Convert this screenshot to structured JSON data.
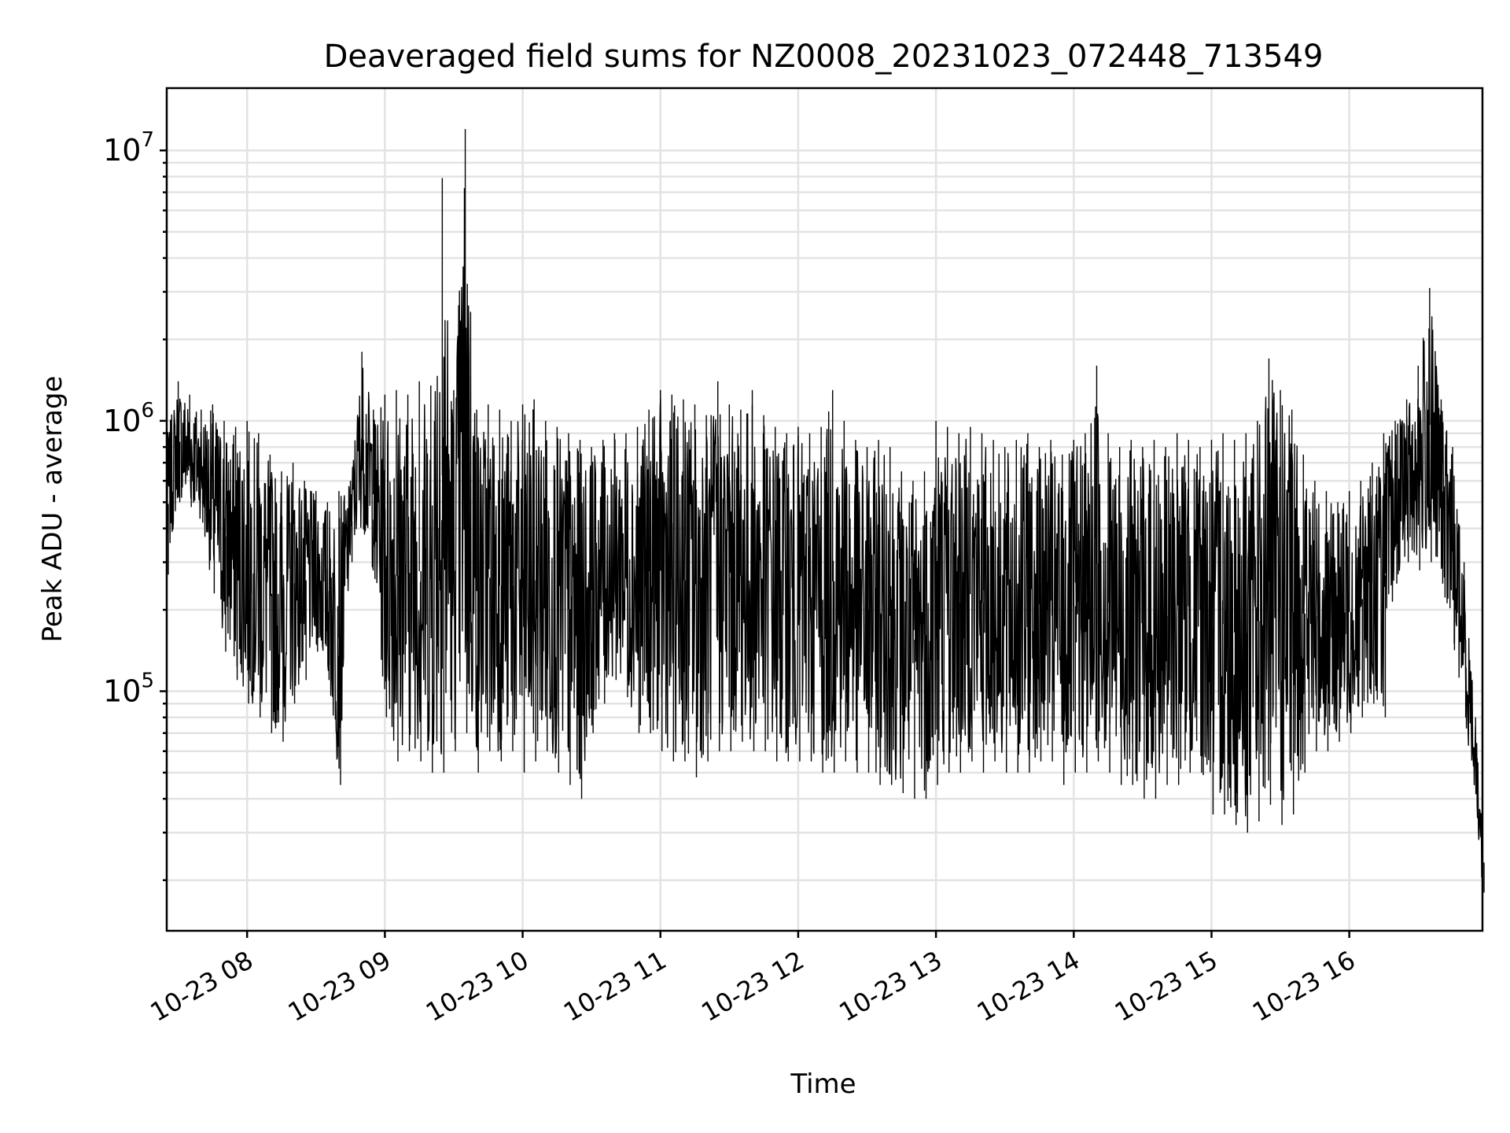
{
  "chart_data": {
    "type": "line",
    "title": "Deaveraged field sums for NZ0008_20231023_072448_713549",
    "xlabel": "Time",
    "ylabel": "Peak ADU - average",
    "yscale": "log",
    "grid": true,
    "xlim": [
      "2023-10-23 07:25",
      "2023-10-23 16:58"
    ],
    "ylim": [
      13000,
      17000000
    ],
    "x_ticks": [
      {
        "value": "2023-10-23 08:00",
        "label": "10-23 08"
      },
      {
        "value": "2023-10-23 09:00",
        "label": "10-23 09"
      },
      {
        "value": "2023-10-23 10:00",
        "label": "10-23 10"
      },
      {
        "value": "2023-10-23 11:00",
        "label": "10-23 11"
      },
      {
        "value": "2023-10-23 12:00",
        "label": "10-23 12"
      },
      {
        "value": "2023-10-23 13:00",
        "label": "10-23 13"
      },
      {
        "value": "2023-10-23 14:00",
        "label": "10-23 14"
      },
      {
        "value": "2023-10-23 15:00",
        "label": "10-23 15"
      },
      {
        "value": "2023-10-23 16:00",
        "label": "10-23 16"
      }
    ],
    "y_ticks": [
      {
        "value": 100000,
        "base": "10",
        "exp": "5"
      },
      {
        "value": 1000000,
        "base": "10",
        "exp": "6"
      },
      {
        "value": 10000000,
        "base": "10",
        "exp": "7"
      }
    ],
    "series": [
      {
        "color": "#000000",
        "x": [
          "2023-10-23 07:25",
          "2023-10-23 07:30",
          "2023-10-23 07:35",
          "2023-10-23 07:40",
          "2023-10-23 07:45",
          "2023-10-23 07:50",
          "2023-10-23 07:55",
          "2023-10-23 08:00",
          "2023-10-23 08:05",
          "2023-10-23 08:10",
          "2023-10-23 08:15",
          "2023-10-23 08:20",
          "2023-10-23 08:25",
          "2023-10-23 08:30",
          "2023-10-23 08:35",
          "2023-10-23 08:40",
          "2023-10-23 08:45",
          "2023-10-23 08:50",
          "2023-10-23 08:55",
          "2023-10-23 09:00",
          "2023-10-23 09:05",
          "2023-10-23 09:10",
          "2023-10-23 09:15",
          "2023-10-23 09:20",
          "2023-10-23 09:25",
          "2023-10-23 09:30",
          "2023-10-23 09:35",
          "2023-10-23 09:40",
          "2023-10-23 09:45",
          "2023-10-23 09:50",
          "2023-10-23 09:55",
          "2023-10-23 10:00",
          "2023-10-23 10:05",
          "2023-10-23 10:10",
          "2023-10-23 10:15",
          "2023-10-23 10:20",
          "2023-10-23 10:25",
          "2023-10-23 10:30",
          "2023-10-23 10:35",
          "2023-10-23 10:40",
          "2023-10-23 10:45",
          "2023-10-23 10:50",
          "2023-10-23 10:55",
          "2023-10-23 11:00",
          "2023-10-23 11:05",
          "2023-10-23 11:10",
          "2023-10-23 11:15",
          "2023-10-23 11:20",
          "2023-10-23 11:25",
          "2023-10-23 11:30",
          "2023-10-23 11:35",
          "2023-10-23 11:40",
          "2023-10-23 11:45",
          "2023-10-23 11:50",
          "2023-10-23 11:55",
          "2023-10-23 12:00",
          "2023-10-23 12:05",
          "2023-10-23 12:10",
          "2023-10-23 12:15",
          "2023-10-23 12:20",
          "2023-10-23 12:25",
          "2023-10-23 12:30",
          "2023-10-23 12:35",
          "2023-10-23 12:40",
          "2023-10-23 12:45",
          "2023-10-23 12:50",
          "2023-10-23 12:55",
          "2023-10-23 13:00",
          "2023-10-23 13:05",
          "2023-10-23 13:10",
          "2023-10-23 13:15",
          "2023-10-23 13:20",
          "2023-10-23 13:25",
          "2023-10-23 13:30",
          "2023-10-23 13:35",
          "2023-10-23 13:40",
          "2023-10-23 13:45",
          "2023-10-23 13:50",
          "2023-10-23 13:55",
          "2023-10-23 14:00",
          "2023-10-23 14:05",
          "2023-10-23 14:10",
          "2023-10-23 14:15",
          "2023-10-23 14:20",
          "2023-10-23 14:25",
          "2023-10-23 14:30",
          "2023-10-23 14:35",
          "2023-10-23 14:40",
          "2023-10-23 14:45",
          "2023-10-23 14:50",
          "2023-10-23 14:55",
          "2023-10-23 15:00",
          "2023-10-23 15:05",
          "2023-10-23 15:10",
          "2023-10-23 15:15",
          "2023-10-23 15:20",
          "2023-10-23 15:25",
          "2023-10-23 15:30",
          "2023-10-23 15:35",
          "2023-10-23 15:40",
          "2023-10-23 15:45",
          "2023-10-23 15:50",
          "2023-10-23 15:55",
          "2023-10-23 16:00",
          "2023-10-23 16:05",
          "2023-10-23 16:10",
          "2023-10-23 16:15",
          "2023-10-23 16:20",
          "2023-10-23 16:25",
          "2023-10-23 16:30",
          "2023-10-23 16:35",
          "2023-10-23 16:40",
          "2023-10-23 16:45",
          "2023-10-23 16:50",
          "2023-10-23 16:55",
          "2023-10-23 16:58"
        ],
        "upper": [
          900000,
          1400000,
          1250000,
          1100000,
          1150000,
          1000000,
          950000,
          1000000,
          900000,
          750000,
          650000,
          700000,
          600000,
          550000,
          500000,
          550000,
          600000,
          1800000,
          1100000,
          1250000,
          1300000,
          1250000,
          1400000,
          1350000,
          7900000,
          1300000,
          12000000,
          1100000,
          1150000,
          1100000,
          1000000,
          1150000,
          1200000,
          1000000,
          950000,
          900000,
          850000,
          800000,
          850000,
          900000,
          900000,
          950000,
          1100000,
          1300000,
          1250000,
          1200000,
          1150000,
          1050000,
          1400000,
          1150000,
          1100000,
          1300000,
          1050000,
          950000,
          900000,
          950000,
          900000,
          950000,
          1300000,
          1000000,
          850000,
          800000,
          850000,
          800000,
          650000,
          600000,
          650000,
          1000000,
          950000,
          900000,
          950000,
          900000,
          850000,
          800000,
          850000,
          900000,
          800000,
          850000,
          750000,
          850000,
          900000,
          1600000,
          900000,
          800000,
          850000,
          800000,
          850000,
          800000,
          900000,
          850000,
          800000,
          850000,
          900000,
          850000,
          900000,
          1000000,
          1700000,
          1300000,
          1100000,
          750000,
          600000,
          550000,
          500000,
          550000,
          600000,
          700000,
          900000,
          1000000,
          1200000,
          1600000,
          3100000,
          1200000,
          800000,
          300000,
          80000,
          30000
        ],
        "lower": [
          270000,
          500000,
          480000,
          420000,
          230000,
          140000,
          110000,
          90000,
          80000,
          70000,
          65000,
          90000,
          110000,
          140000,
          110000,
          45000,
          300000,
          400000,
          260000,
          80000,
          55000,
          60000,
          55000,
          50000,
          50000,
          60000,
          70000,
          50000,
          60000,
          55000,
          60000,
          50000,
          55000,
          60000,
          50000,
          45000,
          40000,
          70000,
          90000,
          110000,
          95000,
          70000,
          70000,
          60000,
          55000,
          55000,
          48000,
          55000,
          60000,
          60000,
          65000,
          60000,
          60000,
          55000,
          55000,
          55000,
          55000,
          50000,
          50000,
          55000,
          50000,
          50000,
          45000,
          45000,
          42000,
          40000,
          40000,
          45000,
          50000,
          50000,
          55000,
          50000,
          55000,
          50000,
          50000,
          50000,
          55000,
          55000,
          45000,
          50000,
          50000,
          55000,
          50000,
          45000,
          45000,
          40000,
          40000,
          45000,
          45000,
          50000,
          50000,
          35000,
          35000,
          32000,
          30000,
          33000,
          38000,
          32000,
          35000,
          50000,
          60000,
          60000,
          65000,
          70000,
          80000,
          90000,
          80000,
          250000,
          300000,
          280000,
          300000,
          250000,
          150000,
          80000,
          40000,
          18000
        ]
      }
    ]
  }
}
